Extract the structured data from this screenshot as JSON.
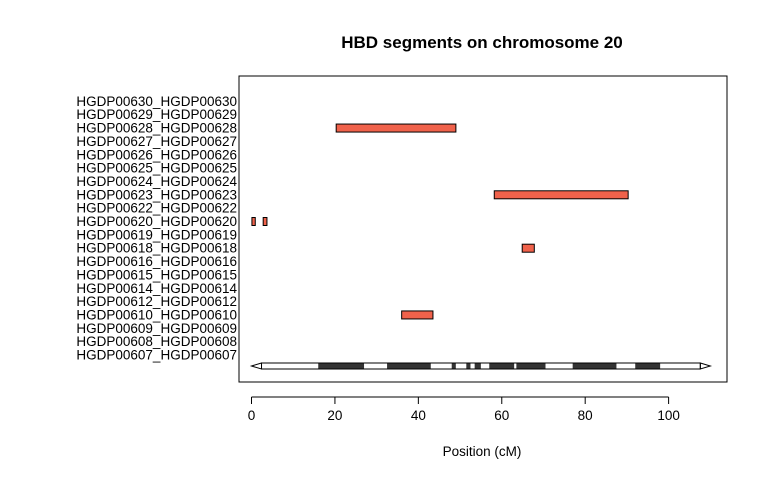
{
  "chart_data": {
    "type": "bar",
    "title": "HBD segments on chromosome 20",
    "xlabel": "Position (cM)",
    "ylabel": "",
    "xlim": [
      -3,
      114
    ],
    "x_ticks": [
      0,
      20,
      40,
      60,
      80,
      100
    ],
    "categories": [
      "HGDP00607_HGDP00607",
      "HGDP00608_HGDP00608",
      "HGDP00609_HGDP00609",
      "HGDP00610_HGDP00610",
      "HGDP00612_HGDP00612",
      "HGDP00614_HGDP00614",
      "HGDP00615_HGDP00615",
      "HGDP00616_HGDP00616",
      "HGDP00618_HGDP00618",
      "HGDP00619_HGDP00619",
      "HGDP00620_HGDP00620",
      "HGDP00622_HGDP00622",
      "HGDP00623_HGDP00623",
      "HGDP00624_HGDP00624",
      "HGDP00625_HGDP00625",
      "HGDP00626_HGDP00626",
      "HGDP00627_HGDP00627",
      "HGDP00628_HGDP00628",
      "HGDP00629_HGDP00629",
      "HGDP00630_HGDP00630"
    ],
    "segments": [
      {
        "individual": "HGDP00628_HGDP00628",
        "start": 20.3,
        "end": 49.0
      },
      {
        "individual": "HGDP00623_HGDP00623",
        "start": 58.2,
        "end": 90.3
      },
      {
        "individual": "HGDP00620_HGDP00620",
        "start": 0.1,
        "end": 0.9
      },
      {
        "individual": "HGDP00620_HGDP00620",
        "start": 2.8,
        "end": 3.7
      },
      {
        "individual": "HGDP00618_HGDP00618",
        "start": 64.9,
        "end": 67.8
      },
      {
        "individual": "HGDP00610_HGDP00610",
        "start": 36.0,
        "end": 43.5
      }
    ],
    "chromosome_range": [
      0,
      110
    ],
    "ideogram_bands": [
      {
        "start": 0,
        "end": 7.5,
        "stain": "gneg"
      },
      {
        "start": 7.5,
        "end": 16,
        "stain": "gneg"
      },
      {
        "start": 16,
        "end": 27,
        "stain": "gpos"
      },
      {
        "start": 27,
        "end": 32.5,
        "stain": "gneg"
      },
      {
        "start": 32.5,
        "end": 43,
        "stain": "gpos"
      },
      {
        "start": 43,
        "end": 48,
        "stain": "gneg"
      },
      {
        "start": 48,
        "end": 49,
        "stain": "gpos"
      },
      {
        "start": 49,
        "end": 51.5,
        "stain": "gneg"
      },
      {
        "start": 51.5,
        "end": 52.5,
        "stain": "gpos"
      },
      {
        "start": 52.5,
        "end": 53.5,
        "stain": "gneg"
      },
      {
        "start": 53.5,
        "end": 55,
        "stain": "gpos"
      },
      {
        "start": 55,
        "end": 57,
        "stain": "gneg"
      },
      {
        "start": 57,
        "end": 63,
        "stain": "gpos"
      },
      {
        "start": 63,
        "end": 63.5,
        "stain": "gneg"
      },
      {
        "start": 63.5,
        "end": 70.5,
        "stain": "gpos"
      },
      {
        "start": 70.5,
        "end": 77,
        "stain": "gneg"
      },
      {
        "start": 77,
        "end": 87.5,
        "stain": "gpos"
      },
      {
        "start": 87.5,
        "end": 92,
        "stain": "gneg"
      },
      {
        "start": 92,
        "end": 98,
        "stain": "gpos"
      },
      {
        "start": 98,
        "end": 106,
        "stain": "gneg"
      },
      {
        "start": 106,
        "end": 110,
        "stain": "gneg"
      }
    ],
    "colors": {
      "segment": "#f0624b",
      "band_dark": "#333333",
      "band_light": "#ffffff",
      "axis": "#000000"
    },
    "grid": false,
    "legend": "none"
  }
}
